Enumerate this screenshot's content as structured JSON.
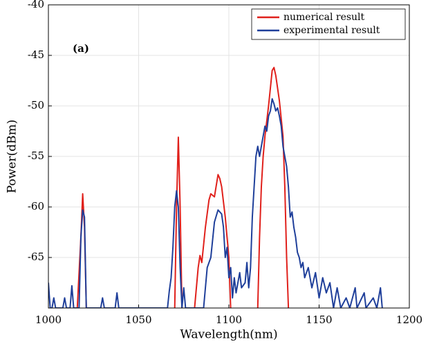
{
  "chart_data": {
    "type": "line",
    "xlabel": "Wavelength(nm)",
    "ylabel": "Power(dBm)",
    "annotation": "(a)",
    "xlim": [
      1000,
      1200
    ],
    "xticks": [
      1000,
      1050,
      1100,
      1150,
      1200
    ],
    "ylim": [
      -70,
      -40
    ],
    "yticks": [
      -40,
      -45,
      -50,
      -55,
      -60,
      -65
    ],
    "grid": true,
    "legend": "upper right",
    "series": [
      {
        "name": "numerical result",
        "color": "#e0201b",
        "x": [
          1016,
          1018,
          1019,
          1020,
          1021,
          1045,
          1070,
          1071,
          1072,
          1073,
          1074,
          1078,
          1081,
          1083,
          1084,
          1085,
          1087,
          1089,
          1090,
          1092,
          1094,
          1095,
          1096,
          1098,
          1100,
          1101,
          1110,
          1116,
          1117,
          1118,
          1119,
          1120,
          1122,
          1124,
          1125,
          1126,
          1128,
          1130,
          1131,
          1132,
          1133
        ],
        "values": [
          -70,
          -63,
          -58.7,
          -62,
          -70,
          null,
          -70,
          -60,
          -53.1,
          -60,
          -70,
          null,
          -70,
          -66,
          -64.8,
          -65.5,
          -62,
          -59.3,
          -58.7,
          -59,
          -56.8,
          -57.2,
          -58,
          -61,
          -65,
          -70,
          null,
          -70,
          -63,
          -58,
          -55,
          -53,
          -50,
          -46.5,
          -46.2,
          -47,
          -49.5,
          -53,
          -58,
          -65,
          -70
        ]
      },
      {
        "name": "experimental result",
        "color": "#1f3f9a",
        "x": [
          1000,
          1001,
          1002,
          1003,
          1004,
          1008,
          1009,
          1010,
          1012,
          1013,
          1014,
          1017,
          1018,
          1019,
          1020,
          1021,
          1029,
          1030,
          1031,
          1037,
          1038,
          1039,
          1066,
          1067,
          1068,
          1069,
          1070,
          1071,
          1072,
          1073,
          1074,
          1075,
          1076,
          1086,
          1087,
          1088,
          1090,
          1092,
          1094,
          1096,
          1097,
          1098,
          1099,
          1100,
          1101,
          1102,
          1103,
          1104,
          1106,
          1107,
          1109,
          1110,
          1111,
          1112,
          1113,
          1114,
          1115,
          1116,
          1117,
          1118,
          1119,
          1120,
          1121,
          1122,
          1123,
          1124,
          1125,
          1126,
          1127,
          1128,
          1129,
          1130,
          1131,
          1132,
          1133,
          1134,
          1135,
          1136,
          1137,
          1138,
          1139,
          1140,
          1141,
          1142,
          1144,
          1146,
          1148,
          1150,
          1152,
          1154,
          1156,
          1158,
          1160,
          1162,
          1165,
          1167,
          1170,
          1171,
          1175,
          1176,
          1180,
          1182,
          1184,
          1185
        ],
        "values": [
          -67.5,
          -70,
          -70,
          -69,
          -70,
          -70,
          -69,
          -70,
          -70,
          -67.8,
          -70,
          -70,
          -63,
          -60.3,
          -61,
          -70,
          -70,
          -69,
          -70,
          -70,
          -68.5,
          -70,
          -70,
          -68.3,
          -67,
          -64,
          -60,
          -58.4,
          -60,
          -66,
          -70,
          -68,
          -70,
          -70,
          -68,
          -66,
          -65,
          -61.5,
          -60.3,
          -60.7,
          -62,
          -65,
          -64,
          -67,
          -66,
          -69,
          -67,
          -68.5,
          -66.5,
          -68,
          -67.5,
          -65.5,
          -68,
          -66,
          -61,
          -58,
          -55,
          -54,
          -55,
          -54,
          -53,
          -52,
          -52.5,
          -51,
          -50.5,
          -49.3,
          -49.8,
          -50.5,
          -50.2,
          -51,
          -52,
          -54,
          -55,
          -56,
          -58,
          -61,
          -60.5,
          -62,
          -63,
          -64.5,
          -65,
          -66,
          -65.5,
          -67,
          -66,
          -68,
          -66.5,
          -69,
          -67,
          -68.5,
          -67.5,
          -70,
          -68,
          -70,
          -69,
          -70,
          -68,
          -70,
          -68.5,
          -70,
          -69,
          -70,
          -68,
          -70
        ]
      }
    ]
  }
}
